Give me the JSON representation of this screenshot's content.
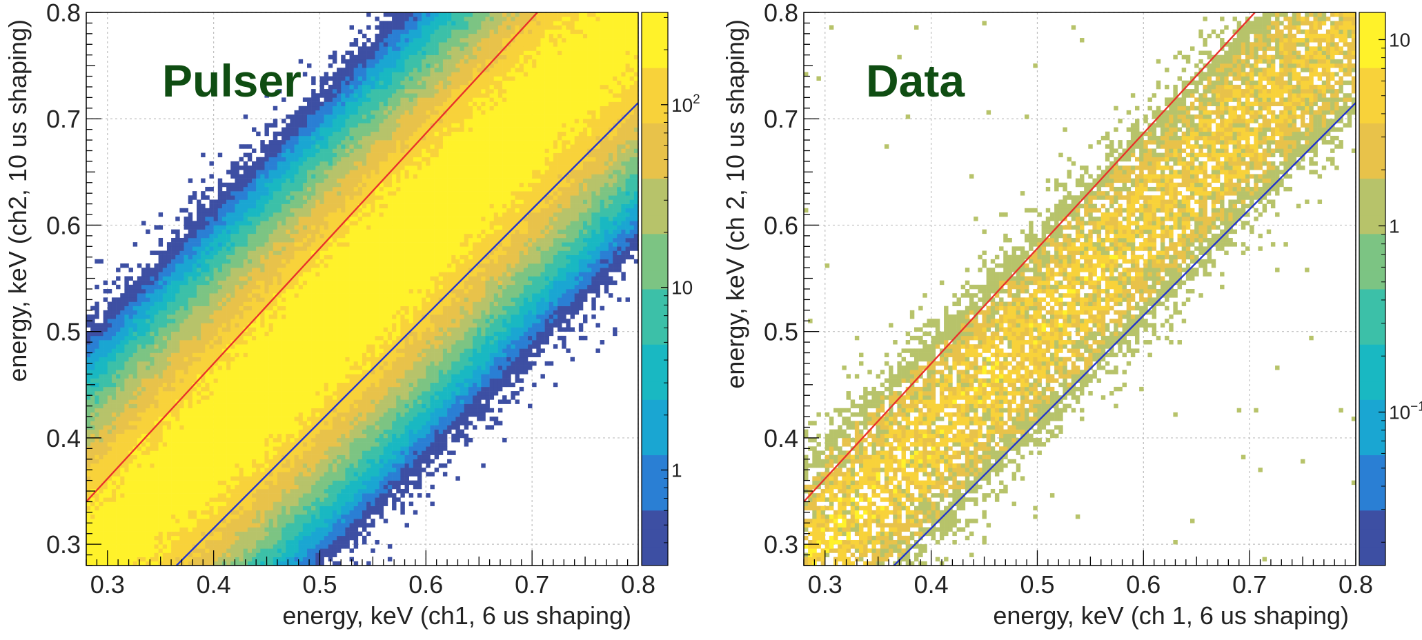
{
  "chart_data": [
    {
      "type": "heatmap",
      "title": "",
      "annotation": "Pulser",
      "annotation_color": "#0f4d12",
      "xlabel": "energy, keV (ch1, 6 us shaping)",
      "ylabel": "energy, keV (ch2, 10 us shaping)",
      "xlim": [
        0.28,
        0.8
      ],
      "ylim": [
        0.28,
        0.8
      ],
      "xticks": [
        "0.3",
        "0.4",
        "0.5",
        "0.6",
        "0.7",
        "0.8"
      ],
      "yticks": [
        "0.3",
        "0.4",
        "0.5",
        "0.6",
        "0.7",
        "0.8"
      ],
      "grid": true,
      "bin_width": 0.004,
      "band": {
        "center_offset": 0.0,
        "sigma": 0.042,
        "peak_counts": 320,
        "min_counts": 0.3
      },
      "cut_lines": [
        {
          "color": "#e8322a",
          "x": [
            0.28,
            0.705
          ],
          "y": [
            0.34,
            0.8
          ]
        },
        {
          "color": "#2233cc",
          "x": [
            0.365,
            0.8
          ],
          "y": [
            0.28,
            0.715
          ]
        }
      ],
      "colorbar": {
        "scale": "log",
        "range": [
          0.3,
          320
        ],
        "colors": [
          "#3d4fa3",
          "#2a7fd4",
          "#1aa6d2",
          "#19b8c2",
          "#3cc0a8",
          "#7cc483",
          "#b7c36a",
          "#e8c24a",
          "#f8d23a",
          "#fff22a"
        ],
        "tick_labels": [
          "10<sup>2</sup>",
          "10",
          "1"
        ],
        "tick_values": [
          100,
          10,
          1
        ]
      }
    },
    {
      "type": "heatmap",
      "title": "",
      "annotation": "Data",
      "annotation_color": "#0f4d12",
      "xlabel": "energy, keV (ch 1, 6 us shaping)",
      "ylabel": "energy, keV (ch 2, 10 us shaping)",
      "xlim": [
        0.28,
        0.8
      ],
      "ylim": [
        0.28,
        0.8
      ],
      "xticks": [
        "0.3",
        "0.4",
        "0.5",
        "0.6",
        "0.7",
        "0.8"
      ],
      "yticks": [
        "0.3",
        "0.4",
        "0.5",
        "0.6",
        "0.7",
        "0.8"
      ],
      "grid": true,
      "bin_width": 0.004,
      "band": {
        "center_offset": 0.0,
        "sigma": 0.03,
        "peak_counts": 10,
        "min_counts": 1
      },
      "cut_lines": [
        {
          "color": "#e8322a",
          "x": [
            0.28,
            0.705
          ],
          "y": [
            0.34,
            0.8
          ]
        },
        {
          "color": "#2233cc",
          "x": [
            0.365,
            0.8
          ],
          "y": [
            0.28,
            0.715
          ]
        }
      ],
      "colorbar": {
        "scale": "log",
        "range": [
          0.015,
          14
        ],
        "colors": [
          "#3d4fa3",
          "#2a7fd4",
          "#1aa6d2",
          "#19b8c2",
          "#3cc0a8",
          "#7cc483",
          "#b7c36a",
          "#e8c24a",
          "#f8d23a",
          "#fff22a"
        ],
        "tick_labels": [
          "10",
          "1",
          "10<sup>−1</sup>"
        ],
        "tick_values": [
          10,
          1,
          0.1
        ]
      }
    }
  ]
}
